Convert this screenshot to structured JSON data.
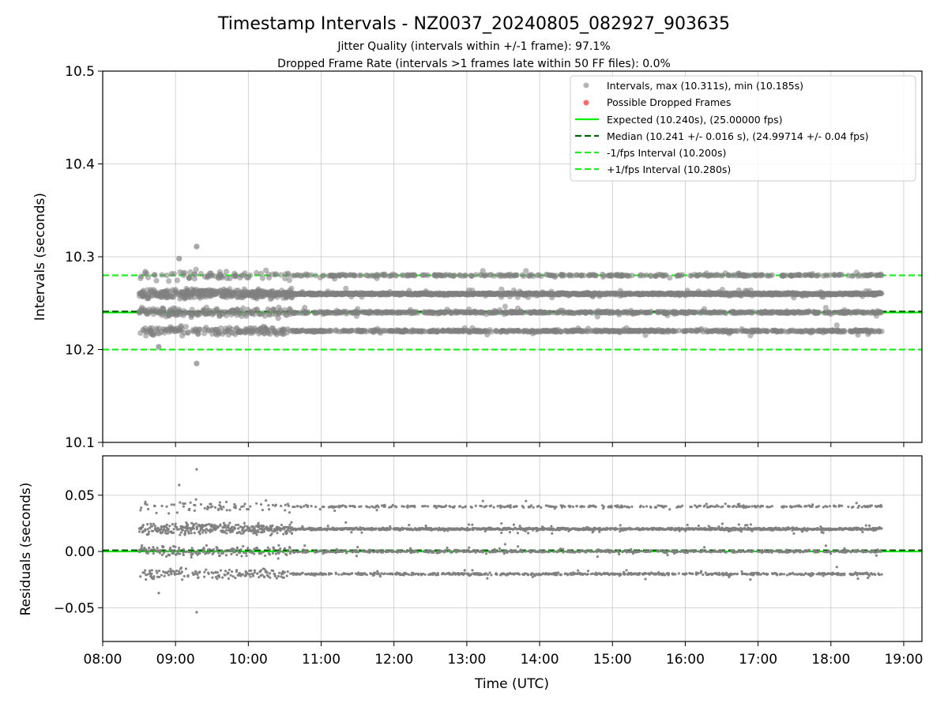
{
  "chart_data": {
    "title": "Timestamp Intervals - NZ0037_20240805_082927_903635",
    "subtitle_lines": [
      "Jitter Quality (intervals within +/-1 frame): 97.1%",
      "Dropped Frame Rate (intervals >1 frames late within 50 FF files): 0.0%"
    ],
    "colors": {
      "points": "#808080",
      "dropped": "#ff4d4d",
      "expected": "#00ee00",
      "median": "#006400",
      "interval": "#22ee22",
      "grid": "#b0b0b0"
    },
    "panels": [
      {
        "type": "scatter",
        "ylabel": "Intervals (seconds)",
        "ylim": [
          10.1,
          10.5
        ],
        "yticks": [
          "10.1",
          "10.2",
          "10.3",
          "10.4",
          "10.5"
        ],
        "ytick_values": [
          10.1,
          10.2,
          10.3,
          10.4,
          10.5
        ],
        "grid": true,
        "legend_position": "top-right",
        "reference_lines": [
          {
            "value": 10.24,
            "style": "solid"
          },
          {
            "value": 10.241,
            "style": "dashed"
          },
          {
            "value": 10.2,
            "style": "dashed"
          },
          {
            "value": 10.28,
            "style": "dashed"
          }
        ],
        "legend": [
          {
            "marker": "dot-gray",
            "label": "Intervals, max (10.311s), min (10.185s)"
          },
          {
            "marker": "dot-red",
            "label": "Possible Dropped Frames"
          },
          {
            "marker": "line-expected",
            "label": "Expected (10.240s), (25.00000 fps)"
          },
          {
            "marker": "line-median",
            "label": "Median (10.241 +/- 0.016 s), (24.99714 +/- 0.04 fps)"
          },
          {
            "marker": "line-minus",
            "label": "-1/fps Interval (10.200s)"
          },
          {
            "marker": "line-plus",
            "label": "+1/fps Interval (10.280s)"
          }
        ],
        "series": {
          "intervals": {
            "x_range_hours": [
              8.5,
              18.7
            ],
            "levels": [
              10.22,
              10.24,
              10.26,
              10.28
            ],
            "level_weights": [
              0.22,
              0.22,
              0.44,
              0.12
            ],
            "n_points": 3560,
            "max": 10.311,
            "min": 10.185,
            "outliers": [
              {
                "x": 9.29,
                "y": 10.311
              },
              {
                "x": 9.29,
                "y": 10.185
              },
              {
                "x": 9.05,
                "y": 10.298
              },
              {
                "x": 8.77,
                "y": 10.203
              }
            ]
          },
          "dropped_frames": []
        }
      },
      {
        "type": "scatter",
        "ylabel": "Residuals (seconds)",
        "ylim": [
          -0.08,
          0.085
        ],
        "yticks": [
          "−0.05",
          "0.00",
          "0.05"
        ],
        "ytick_values": [
          -0.05,
          0.0,
          0.05
        ],
        "grid": true,
        "reference_lines": [
          {
            "value": 0.0,
            "style": "solid"
          },
          {
            "value": 0.001,
            "style": "dashed"
          }
        ],
        "series": {
          "residuals": {
            "x_range_hours": [
              8.5,
              18.7
            ],
            "levels": [
              -0.02,
              0.0,
              0.02,
              0.04
            ],
            "level_weights": [
              0.22,
              0.22,
              0.44,
              0.12
            ],
            "outliers": [
              {
                "x": 9.29,
                "y": 0.073
              },
              {
                "x": 9.29,
                "y": -0.054
              },
              {
                "x": 9.05,
                "y": 0.059
              },
              {
                "x": 8.77,
                "y": -0.037
              }
            ]
          }
        }
      }
    ],
    "x_axis": {
      "xlabel": "Time (UTC)",
      "xlim_hours": [
        8.0,
        19.25
      ],
      "tick_hours": [
        8,
        9,
        10,
        11,
        12,
        13,
        14,
        15,
        16,
        17,
        18,
        19
      ],
      "tick_labels": [
        "08:00",
        "09:00",
        "10:00",
        "11:00",
        "12:00",
        "13:00",
        "14:00",
        "15:00",
        "16:00",
        "17:00",
        "18:00",
        "19:00"
      ]
    }
  }
}
